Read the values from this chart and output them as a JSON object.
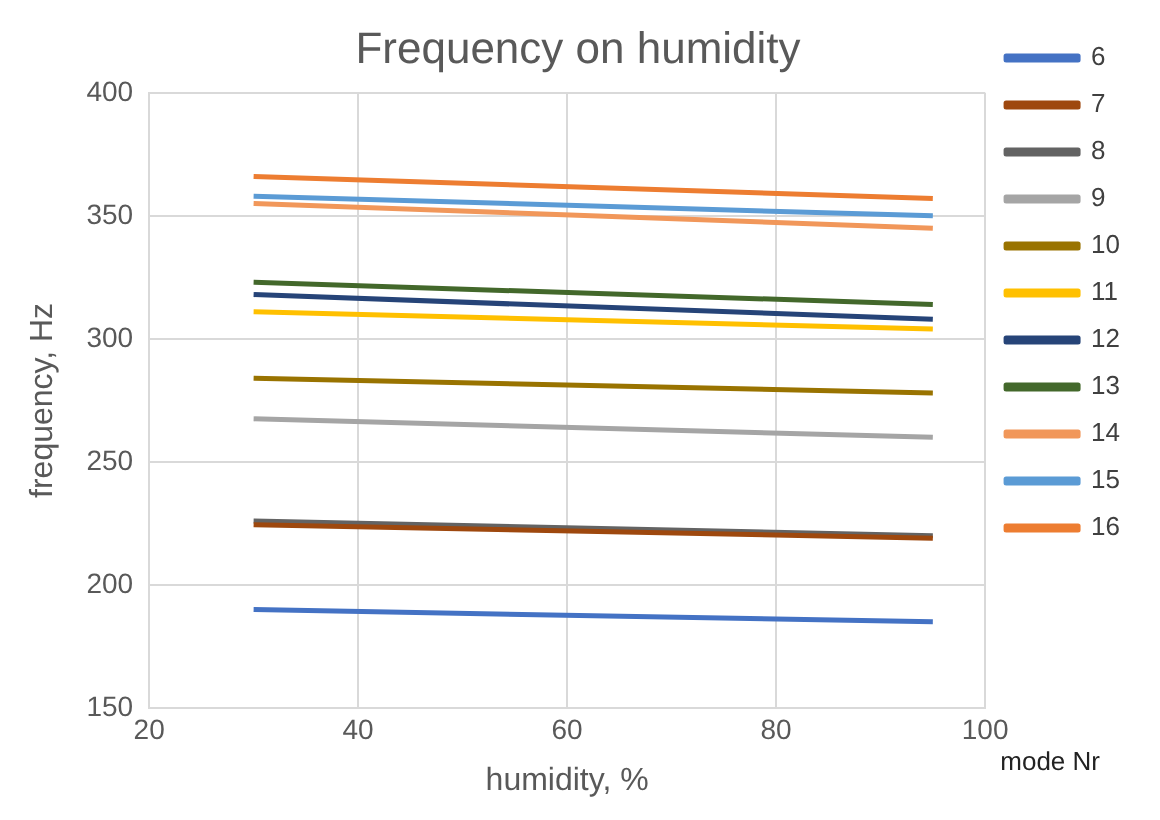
{
  "chart_data": {
    "type": "line",
    "title": "Frequency on humidity",
    "xlabel": "humidity, %",
    "ylabel": "frequency, Hz",
    "legend_title": "mode Nr",
    "x": [
      30,
      95
    ],
    "xlim": [
      20,
      100
    ],
    "xticks": [
      20,
      40,
      60,
      80,
      100
    ],
    "ylim": [
      150,
      400
    ],
    "yticks": [
      150,
      200,
      250,
      300,
      350,
      400
    ],
    "grid": true,
    "legend": "right",
    "marker": "none",
    "line_style": "solid",
    "series": [
      {
        "name": "6",
        "color": "#4472c4",
        "values": [
          190,
          185
        ]
      },
      {
        "name": "7",
        "color": "#9e480e",
        "values": [
          224.5,
          219
        ]
      },
      {
        "name": "8",
        "color": "#636363",
        "values": [
          226,
          220
        ]
      },
      {
        "name": "9",
        "color": "#a5a5a5",
        "values": [
          267.5,
          260
        ]
      },
      {
        "name": "10",
        "color": "#997300",
        "values": [
          284,
          278
        ]
      },
      {
        "name": "11",
        "color": "#ffc000",
        "values": [
          311,
          304
        ]
      },
      {
        "name": "12",
        "color": "#264478",
        "values": [
          318,
          308
        ]
      },
      {
        "name": "13",
        "color": "#43682b",
        "values": [
          323,
          314
        ]
      },
      {
        "name": "14",
        "color": "#f1975a",
        "values": [
          355,
          345
        ]
      },
      {
        "name": "15",
        "color": "#5b9bd5",
        "values": [
          358,
          350
        ]
      },
      {
        "name": "16",
        "color": "#ed7d31",
        "values": [
          366,
          357
        ]
      }
    ]
  }
}
